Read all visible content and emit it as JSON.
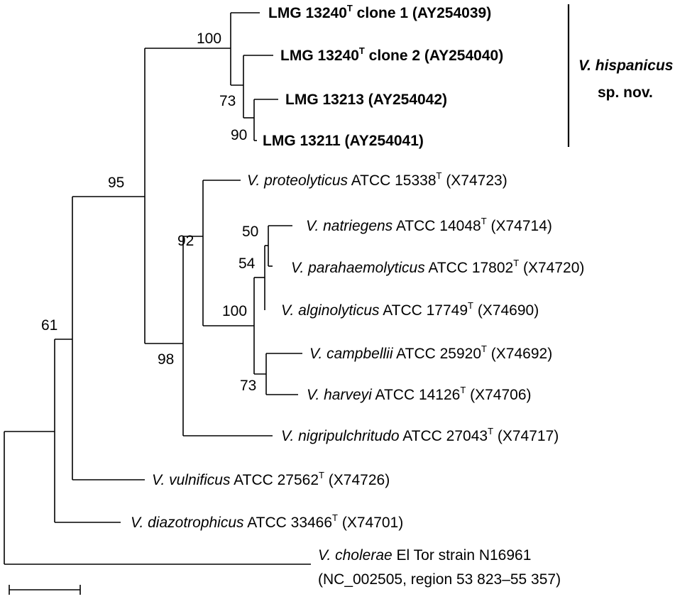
{
  "taxa": {
    "t1": {
      "main": "LMG 13240",
      "sup": "T",
      "rest": " clone 1 (AY254039)"
    },
    "t2": {
      "main": "LMG 13240",
      "sup": "T",
      "rest": " clone 2 (AY254040)"
    },
    "t3": {
      "main": "LMG 13213 (AY254042)"
    },
    "t4": {
      "main": "LMG 13211 (AY254041)"
    },
    "t5": {
      "sp": "V. proteolyticus",
      "rest": " ATCC 15338",
      "sup": "T",
      "acc": " (X74723)"
    },
    "t6": {
      "sp": "V. natriegens",
      "rest": " ATCC 14048",
      "sup": "T",
      "acc": " (X74714)"
    },
    "t7": {
      "sp": "V. parahaemolyticus",
      "rest": " ATCC 17802",
      "sup": "T",
      "acc": " (X74720)"
    },
    "t8": {
      "sp": "V. alginolyticus",
      "rest": " ATCC 17749",
      "sup": "T",
      "acc": " (X74690)"
    },
    "t9": {
      "sp": "V. campbellii",
      "rest": " ATCC 25920",
      "sup": "T",
      "acc": " (X74692)"
    },
    "t10": {
      "sp": "V. harveyi",
      "rest": " ATCC 14126",
      "sup": "T",
      "acc": " (X74706)"
    },
    "t11": {
      "sp": "V. nigripulchritudo",
      "rest": " ATCC 27043",
      "sup": "T",
      "acc": " (X74717)"
    },
    "t12": {
      "sp": "V. vulnificus",
      "rest": " ATCC 27562",
      "sup": "T",
      "acc": " (X74726)"
    },
    "t13": {
      "sp": "V. diazotrophicus",
      "rest": " ATCC 33466",
      "sup": "T",
      "acc": " (X74701)"
    },
    "t14": {
      "sp": "V. cholerae",
      "rest": " El Tor strain N16961",
      "line2": "(NC_002505, region 53 823–55 357)"
    }
  },
  "clade": {
    "line1": "V. hispanicus",
    "line2": "sp. nov."
  },
  "bootstrap": {
    "b100a": "100",
    "b73a": "73",
    "b90": "90",
    "b95": "95",
    "b92": "92",
    "b50": "50",
    "b54": "54",
    "b100b": "100",
    "b98": "98",
    "b73b": "73",
    "b61": "61"
  }
}
